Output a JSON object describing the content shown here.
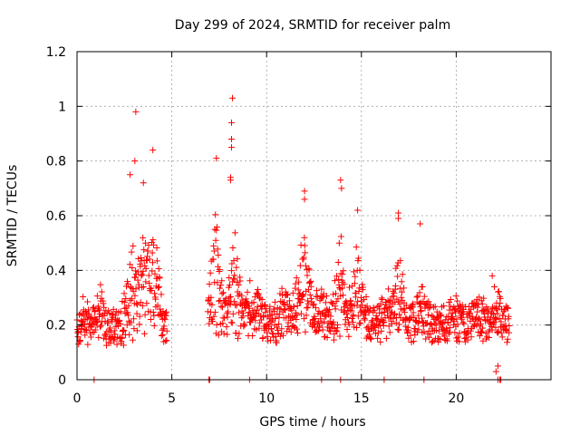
{
  "chart_data": {
    "type": "scatter",
    "title": "Day 299 of 2024, SRMTID for receiver palm",
    "xlabel": "GPS time / hours",
    "ylabel": "SRMTID / TECUs",
    "xlim": [
      0,
      25
    ],
    "ylim": [
      0,
      1.2
    ],
    "xticks": [
      0,
      5,
      10,
      15,
      20
    ],
    "xtick_labels": [
      "0",
      "5",
      "10",
      "15",
      "20"
    ],
    "yticks": [
      0,
      0.2,
      0.4,
      0.6,
      0.8,
      1.0,
      1.2
    ],
    "ytick_labels": [
      "0",
      "0.2",
      "0.4",
      "0.6",
      "0.8",
      "1",
      "1.2"
    ],
    "grid": true,
    "marker": "+",
    "color": "#ff0000",
    "series": [
      {
        "name": "palm",
        "segments": [
          {
            "start": 0.0,
            "end": 4.75,
            "base": 0.19,
            "spread": 0.07
          },
          {
            "start": 6.9,
            "end": 22.8,
            "base": 0.2,
            "spread": 0.07
          }
        ],
        "peaks": [
          {
            "center": 0.45,
            "width": 0.25,
            "amp": 0.08
          },
          {
            "center": 1.2,
            "width": 0.2,
            "amp": 0.15
          },
          {
            "center": 2.9,
            "width": 0.35,
            "amp": 0.3
          },
          {
            "center": 3.6,
            "width": 0.4,
            "amp": 0.35
          },
          {
            "center": 4.1,
            "width": 0.3,
            "amp": 0.3
          },
          {
            "center": 7.3,
            "width": 0.35,
            "amp": 0.35
          },
          {
            "center": 8.3,
            "width": 0.35,
            "amp": 0.3
          },
          {
            "center": 9.3,
            "width": 0.4,
            "amp": 0.12
          },
          {
            "center": 11.0,
            "width": 0.4,
            "amp": 0.12
          },
          {
            "center": 12.0,
            "width": 0.4,
            "amp": 0.3
          },
          {
            "center": 13.0,
            "width": 0.4,
            "amp": 0.1
          },
          {
            "center": 13.9,
            "width": 0.3,
            "amp": 0.3
          },
          {
            "center": 14.8,
            "width": 0.35,
            "amp": 0.25
          },
          {
            "center": 16.3,
            "width": 0.3,
            "amp": 0.1
          },
          {
            "center": 17.0,
            "width": 0.3,
            "amp": 0.22
          },
          {
            "center": 18.2,
            "width": 0.3,
            "amp": 0.15
          },
          {
            "center": 20.0,
            "width": 0.3,
            "amp": 0.1
          },
          {
            "center": 21.2,
            "width": 0.3,
            "amp": 0.08
          },
          {
            "center": 22.1,
            "width": 0.3,
            "amp": 0.1
          }
        ],
        "outliers": [
          {
            "x": 3.1,
            "y": 0.98
          },
          {
            "x": 3.05,
            "y": 0.8
          },
          {
            "x": 4.0,
            "y": 0.84
          },
          {
            "x": 3.5,
            "y": 0.72
          },
          {
            "x": 2.8,
            "y": 0.75
          },
          {
            "x": 7.35,
            "y": 0.81
          },
          {
            "x": 8.2,
            "y": 1.03
          },
          {
            "x": 8.15,
            "y": 0.94
          },
          {
            "x": 8.15,
            "y": 0.88
          },
          {
            "x": 8.15,
            "y": 0.85
          },
          {
            "x": 8.1,
            "y": 0.74
          },
          {
            "x": 8.1,
            "y": 0.73
          },
          {
            "x": 12.0,
            "y": 0.69
          },
          {
            "x": 12.0,
            "y": 0.66
          },
          {
            "x": 13.9,
            "y": 0.73
          },
          {
            "x": 13.95,
            "y": 0.7
          },
          {
            "x": 14.8,
            "y": 0.62
          },
          {
            "x": 16.95,
            "y": 0.61
          },
          {
            "x": 16.95,
            "y": 0.59
          },
          {
            "x": 18.1,
            "y": 0.57
          },
          {
            "x": 22.1,
            "y": 0.03
          },
          {
            "x": 22.2,
            "y": 0.05
          },
          {
            "x": 21.9,
            "y": 0.38
          }
        ],
        "zero_points": [
          0.9,
          6.95,
          7.0,
          9.1,
          12.9,
          13.9,
          16.2,
          18.3,
          22.2,
          22.3,
          22.35
        ]
      }
    ]
  }
}
